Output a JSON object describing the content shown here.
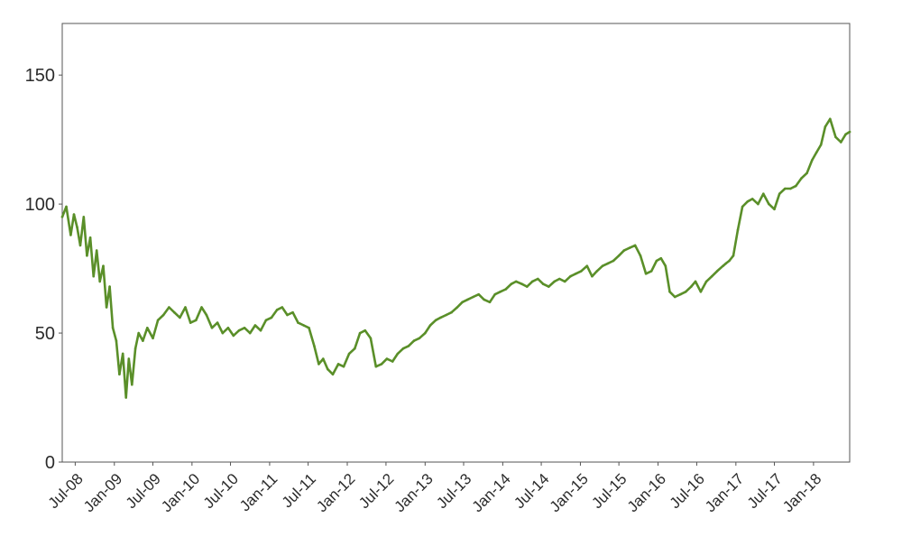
{
  "chart_data": {
    "type": "line",
    "title": "",
    "xlabel": "",
    "ylabel": "",
    "grid": false,
    "legend": "none",
    "line_color": "#5a8f29",
    "frame_color": "#555555",
    "xlim": [
      "2008-05-01",
      "2018-06-20"
    ],
    "ylim": [
      0,
      170
    ],
    "yticks": [
      0,
      50,
      100,
      150
    ],
    "ytick_labels": [
      "0",
      "50",
      "100",
      "150"
    ],
    "xticks": [
      {
        "date": "2008-07-01",
        "label": "Jul-08"
      },
      {
        "date": "2009-01-01",
        "label": "Jan-09"
      },
      {
        "date": "2009-07-01",
        "label": "Jul-09"
      },
      {
        "date": "2010-01-01",
        "label": "Jan-10"
      },
      {
        "date": "2010-07-01",
        "label": "Jul-10"
      },
      {
        "date": "2011-01-01",
        "label": "Jan-11"
      },
      {
        "date": "2011-07-01",
        "label": "Jul-11"
      },
      {
        "date": "2012-01-01",
        "label": "Jan-12"
      },
      {
        "date": "2012-07-01",
        "label": "Jul-12"
      },
      {
        "date": "2013-01-01",
        "label": "Jan-13"
      },
      {
        "date": "2013-07-01",
        "label": "Jul-13"
      },
      {
        "date": "2014-01-01",
        "label": "Jan-14"
      },
      {
        "date": "2014-07-01",
        "label": "Jul-14"
      },
      {
        "date": "2015-01-01",
        "label": "Jan-15"
      },
      {
        "date": "2015-07-01",
        "label": "Jul-15"
      },
      {
        "date": "2016-01-01",
        "label": "Jan-16"
      },
      {
        "date": "2016-07-01",
        "label": "Jul-16"
      },
      {
        "date": "2017-01-01",
        "label": "Jan-17"
      },
      {
        "date": "2017-07-01",
        "label": "Jul-17"
      },
      {
        "date": "2018-01-01",
        "label": "Jan-18"
      }
    ],
    "series": [
      {
        "x": [
          "2008-05-01",
          "2008-05-20",
          "2008-06-10",
          "2008-06-25",
          "2008-07-10",
          "2008-07-25",
          "2008-08-10",
          "2008-08-25",
          "2008-09-10",
          "2008-09-25",
          "2008-10-10",
          "2008-10-25",
          "2008-11-10",
          "2008-11-25",
          "2008-12-10",
          "2008-12-25",
          "2009-01-10",
          "2009-01-25",
          "2009-02-10",
          "2009-02-25",
          "2009-03-10",
          "2009-03-25",
          "2009-04-10",
          "2009-04-25",
          "2009-05-15",
          "2009-06-05",
          "2009-07-01",
          "2009-07-25",
          "2009-08-20",
          "2009-09-15",
          "2009-10-10",
          "2009-11-05",
          "2009-12-01",
          "2009-12-25",
          "2010-01-20",
          "2010-02-15",
          "2010-03-10",
          "2010-04-05",
          "2010-05-01",
          "2010-05-25",
          "2010-06-20",
          "2010-07-15",
          "2010-08-10",
          "2010-09-05",
          "2010-10-01",
          "2010-10-25",
          "2010-11-20",
          "2010-12-15",
          "2011-01-10",
          "2011-02-05",
          "2011-03-01",
          "2011-03-25",
          "2011-04-20",
          "2011-05-15",
          "2011-06-10",
          "2011-07-05",
          "2011-07-30",
          "2011-08-20",
          "2011-09-10",
          "2011-10-01",
          "2011-10-25",
          "2011-11-20",
          "2011-12-15",
          "2012-01-10",
          "2012-02-05",
          "2012-03-01",
          "2012-03-25",
          "2012-04-20",
          "2012-05-15",
          "2012-06-10",
          "2012-07-05",
          "2012-08-01",
          "2012-08-25",
          "2012-09-20",
          "2012-10-15",
          "2012-11-10",
          "2012-12-05",
          "2013-01-01",
          "2013-01-25",
          "2013-02-20",
          "2013-03-15",
          "2013-04-10",
          "2013-05-05",
          "2013-06-01",
          "2013-06-25",
          "2013-07-20",
          "2013-08-15",
          "2013-09-10",
          "2013-10-05",
          "2013-11-01",
          "2013-11-25",
          "2013-12-20",
          "2014-01-15",
          "2014-02-10",
          "2014-03-05",
          "2014-04-01",
          "2014-04-25",
          "2014-05-20",
          "2014-06-15",
          "2014-07-10",
          "2014-08-05",
          "2014-09-01",
          "2014-09-25",
          "2014-10-20",
          "2014-11-15",
          "2014-12-10",
          "2015-01-05",
          "2015-02-01",
          "2015-02-25",
          "2015-03-20",
          "2015-04-15",
          "2015-05-10",
          "2015-06-05",
          "2015-07-01",
          "2015-07-25",
          "2015-08-20",
          "2015-09-15",
          "2015-10-10",
          "2015-11-05",
          "2015-12-01",
          "2015-12-25",
          "2016-01-15",
          "2016-02-05",
          "2016-02-25",
          "2016-03-20",
          "2016-04-15",
          "2016-05-10",
          "2016-06-05",
          "2016-06-25",
          "2016-07-20",
          "2016-08-15",
          "2016-09-10",
          "2016-10-05",
          "2016-11-01",
          "2016-11-15",
          "2016-12-01",
          "2016-12-20",
          "2017-01-10",
          "2017-02-01",
          "2017-02-25",
          "2017-03-20",
          "2017-04-15",
          "2017-05-10",
          "2017-06-05",
          "2017-07-01",
          "2017-07-25",
          "2017-08-20",
          "2017-09-15",
          "2017-10-10",
          "2017-11-05",
          "2017-12-01",
          "2017-12-25",
          "2018-01-15",
          "2018-02-05",
          "2018-02-25",
          "2018-03-20",
          "2018-04-15",
          "2018-05-10",
          "2018-06-01",
          "2018-06-20"
        ],
        "y": [
          95,
          99,
          88,
          96,
          91,
          84,
          95,
          80,
          87,
          72,
          82,
          70,
          76,
          60,
          68,
          52,
          47,
          34,
          42,
          25,
          40,
          30,
          44,
          50,
          47,
          52,
          48,
          55,
          57,
          60,
          58,
          56,
          60,
          54,
          55,
          60,
          57,
          52,
          54,
          50,
          52,
          49,
          51,
          52,
          50,
          53,
          51,
          55,
          56,
          59,
          60,
          57,
          58,
          54,
          53,
          52,
          45,
          38,
          40,
          36,
          34,
          38,
          37,
          42,
          44,
          50,
          51,
          48,
          37,
          38,
          40,
          39,
          42,
          44,
          45,
          47,
          48,
          50,
          53,
          55,
          56,
          57,
          58,
          60,
          62,
          63,
          64,
          65,
          63,
          62,
          65,
          66,
          67,
          69,
          70,
          69,
          68,
          70,
          71,
          69,
          68,
          70,
          71,
          70,
          72,
          73,
          74,
          76,
          72,
          74,
          76,
          77,
          78,
          80,
          82,
          83,
          84,
          80,
          73,
          74,
          78,
          79,
          76,
          66,
          64,
          65,
          66,
          68,
          70,
          66,
          70,
          72,
          74,
          76,
          77,
          78,
          80,
          90,
          99,
          101,
          102,
          100,
          104,
          100,
          98,
          104,
          106,
          106,
          107,
          110,
          112,
          117,
          120,
          123,
          130,
          133,
          126,
          124,
          127,
          128
        ]
      }
    ]
  }
}
